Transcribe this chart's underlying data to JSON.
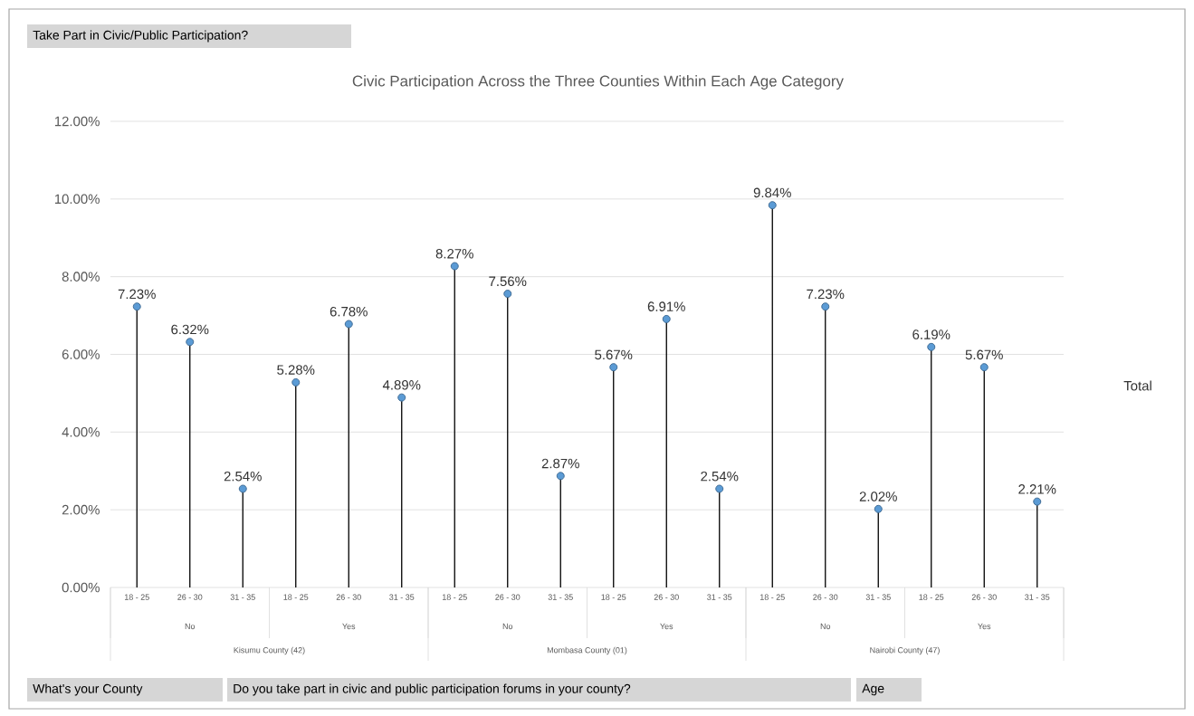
{
  "chart_data": {
    "type": "lollipop",
    "title": "Civic Participation Across the Three Counties Within Each Age Category",
    "categories": [
      "18 - 25",
      "26 - 30",
      "31 - 35",
      "18 - 25",
      "26 - 30",
      "31 - 35",
      "18 - 25",
      "26 - 30",
      "31 - 35",
      "18 - 25",
      "26 - 30",
      "31 - 35",
      "18 - 25",
      "26 - 30",
      "31 - 35",
      "18 - 25",
      "26 - 30",
      "31 - 35"
    ],
    "series": [
      {
        "name": "Total",
        "color": "#5b9bd5",
        "values": [
          7.23,
          6.32,
          2.54,
          5.28,
          6.78,
          4.89,
          8.27,
          7.56,
          2.87,
          5.67,
          6.91,
          2.54,
          9.84,
          7.23,
          2.02,
          6.19,
          5.67,
          2.21
        ],
        "value_labels": [
          "7.23%",
          "6.32%",
          "2.54%",
          "5.28%",
          "6.78%",
          "4.89%",
          "8.27%",
          "7.56%",
          "2.87%",
          "5.67%",
          "6.91%",
          "2.54%",
          "9.84%",
          "7.23%",
          "2.02%",
          "6.19%",
          "5.67%",
          "2.21%"
        ]
      }
    ],
    "ylim": [
      0,
      12
    ],
    "yticks": [
      {
        "value": 0,
        "label": "0.00%"
      },
      {
        "value": 2,
        "label": "2.00%"
      },
      {
        "value": 4,
        "label": "4.00%"
      },
      {
        "value": 6,
        "label": "6.00%"
      },
      {
        "value": 8,
        "label": "8.00%"
      },
      {
        "value": 10,
        "label": "10.00%"
      },
      {
        "value": 12,
        "label": "12.00%"
      }
    ],
    "grid": "y",
    "marker": "circle",
    "legend": "right",
    "annotations": [
      "Take Part in Civic/Public Participation?",
      "What's your County",
      "Do you take part in civic and public participation forums in your county?",
      "Age",
      "No",
      "Yes",
      "No",
      "Yes",
      "No",
      "Yes",
      "Kisumu County (42)",
      "Mombasa County (01)",
      "Nairobi County (47)"
    ]
  }
}
